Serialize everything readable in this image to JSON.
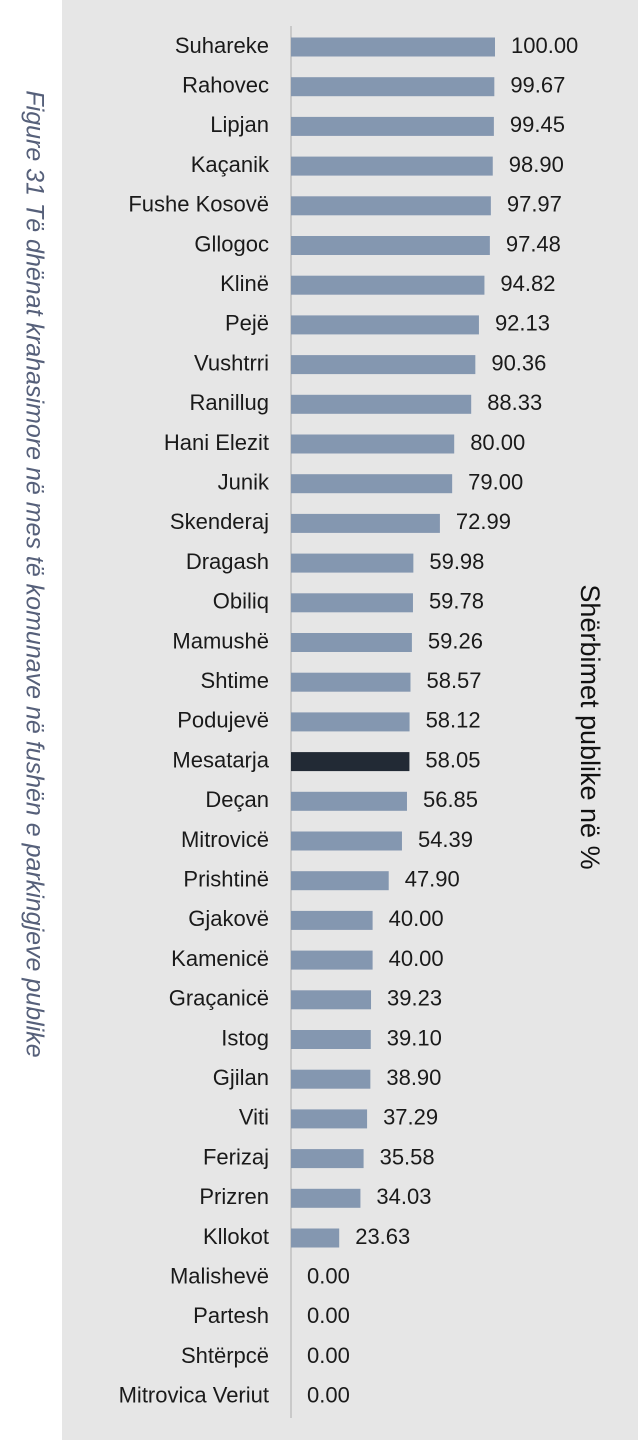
{
  "figure_caption": "Figure 31 Të dhënat krahasimore në mes të komunave në fushën e parkingjeve publike",
  "colors": {
    "bar": "#8497b0",
    "highlight": "#222a35",
    "background": "#e6e6e6",
    "axis": "#bfbfbf"
  },
  "chart_data": {
    "type": "bar",
    "orientation": "horizontal",
    "ylabel": "Shërbimet publike në %",
    "xlim": [
      0,
      100
    ],
    "grid": false,
    "highlight_category": "Mesatarja",
    "categories": [
      "Suhareke",
      "Rahovec",
      "Lipjan",
      "Kaçanik",
      "Fushe Kosovë",
      "Gllogoc",
      "Klinë",
      "Pejë",
      "Vushtrri",
      "Ranillug",
      "Hani Elezit",
      "Junik",
      "Skenderaj",
      "Dragash",
      "Obiliq",
      "Mamushë",
      "Shtime",
      "Podujevë",
      "Mesatarja",
      "Deçan",
      "Mitrovicë",
      "Prishtinë",
      "Gjakovë",
      "Kamenicë",
      "Graçanicë",
      "Istog",
      "Gjilan",
      "Viti",
      "Ferizaj",
      "Prizren",
      "Kllokot",
      "Malishevë",
      "Partesh",
      "Shtërpcë",
      "Mitrovica Veriut"
    ],
    "values": [
      100.0,
      99.67,
      99.45,
      98.9,
      97.97,
      97.48,
      94.82,
      92.13,
      90.36,
      88.33,
      80.0,
      79.0,
      72.99,
      59.98,
      59.78,
      59.26,
      58.57,
      58.12,
      58.05,
      56.85,
      54.39,
      47.9,
      40.0,
      40.0,
      39.23,
      39.1,
      38.9,
      37.29,
      35.58,
      34.03,
      23.63,
      0.0,
      0.0,
      0.0,
      0.0
    ],
    "value_labels": [
      "100.00",
      "99.67",
      "99.45",
      "98.90",
      "97.97",
      "97.48",
      "94.82",
      "92.13",
      "90.36",
      "88.33",
      "80.00",
      "79.00",
      "72.99",
      "59.98",
      "59.78",
      "59.26",
      "58.57",
      "58.12",
      "58.05",
      "56.85",
      "54.39",
      "47.90",
      "40.00",
      "40.00",
      "39.23",
      "39.10",
      "38.90",
      "37.29",
      "35.58",
      "34.03",
      "23.63",
      "0.00",
      "0.00",
      "0.00",
      "0.00"
    ]
  }
}
